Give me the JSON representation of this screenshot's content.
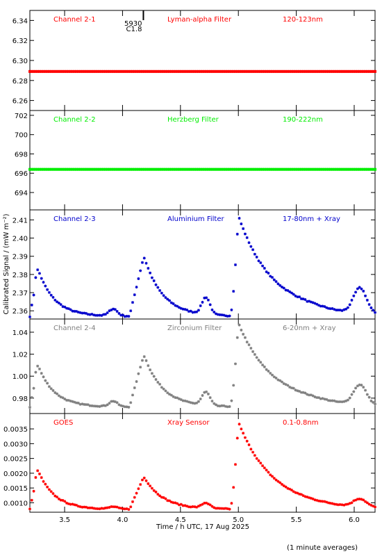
{
  "chart_data": [
    {
      "type": "scatter",
      "labels": {
        "channel": "Channel 2-1",
        "filter": "Lyman-alpha Filter",
        "band": "120-123nm"
      },
      "color": "#ff0000",
      "ylim": [
        6.25,
        6.35
      ],
      "yticks": [
        6.26,
        6.28,
        6.3,
        6.32,
        6.34
      ],
      "ytick_labels": [
        "6.26",
        "6.28",
        "6.30",
        "6.32",
        "6.34"
      ],
      "flare_marker": {
        "x": 4.18,
        "label_top": "5930",
        "label_bottom": "C1.8"
      },
      "series": [
        {
          "kind": "constant",
          "value": 6.289
        }
      ]
    },
    {
      "type": "scatter",
      "labels": {
        "channel": "Channel 2-2",
        "filter": "Herzberg Filter",
        "band": "190-222nm"
      },
      "color": "#00ee00",
      "ylim": [
        692.2,
        702.5
      ],
      "yticks": [
        694,
        696,
        698,
        700,
        702
      ],
      "ytick_labels": [
        "694",
        "696",
        "698",
        "700",
        "702"
      ],
      "series": [
        {
          "kind": "constant",
          "value": 696.4
        }
      ]
    },
    {
      "type": "scatter",
      "labels": {
        "channel": "Channel 2-3",
        "filter": "Aluminium Filter",
        "band": "17-80nm + Xray"
      },
      "color": "#0000cc",
      "ylim": [
        2.3555,
        2.4155
      ],
      "yticks": [
        2.36,
        2.37,
        2.38,
        2.39,
        2.4,
        2.41
      ],
      "ytick_labels": [
        "2.36",
        "2.37",
        "2.38",
        "2.39",
        "2.40",
        "2.41"
      ],
      "series": [
        {
          "kind": "profile",
          "base": 2.357,
          "p1": 2.383,
          "p2": 2.389,
          "p3": 2.412,
          "tail": 2.36,
          "bump": 2.371
        }
      ]
    },
    {
      "type": "scatter",
      "labels": {
        "channel": "Channel 2-4",
        "filter": "Zirconium Filter",
        "band": "6-20nm + Xray"
      },
      "color": "#808080",
      "ylim": [
        0.966,
        1.052
      ],
      "yticks": [
        0.98,
        1.0,
        1.02,
        1.04
      ],
      "ytick_labels": [
        "0.98",
        "1.00",
        "1.02",
        "1.04"
      ],
      "series": [
        {
          "kind": "profile",
          "base": 0.972,
          "p1": 1.01,
          "p2": 1.018,
          "p3": 1.048,
          "tail": 0.976,
          "bump": 0.99
        }
      ]
    },
    {
      "type": "scatter",
      "labels": {
        "channel": "GOES",
        "filter": "Xray Sensor",
        "band": "0.1-0.8nm"
      },
      "color": "#ff0000",
      "ylim": [
        0.00068,
        0.00402
      ],
      "yticks": [
        0.001,
        0.0015,
        0.002,
        0.0025,
        0.003,
        0.0035
      ],
      "ytick_labels": [
        "0.0010",
        "0.0015",
        "0.0020",
        "0.0025",
        "0.0030",
        "0.0035"
      ],
      "series": [
        {
          "kind": "profile",
          "base": 0.00078,
          "p1": 0.0021,
          "p2": 0.00185,
          "p3": 0.00372,
          "tail": 0.0008,
          "bump": 0.00105
        }
      ]
    }
  ],
  "x_axis": {
    "xlim": [
      3.2,
      6.18
    ],
    "ticks": [
      3.5,
      4.0,
      4.5,
      5.0,
      5.5,
      6.0
    ],
    "tick_labels": [
      "3.5",
      "4.0",
      "4.5",
      "5.0",
      "5.5",
      "6.0"
    ],
    "label": "Time / h UTC, 17 Aug 2025"
  },
  "y_axis_label": "Calibrated Signal / (mW m⁻²)",
  "footnote": "(1 minute averages)"
}
